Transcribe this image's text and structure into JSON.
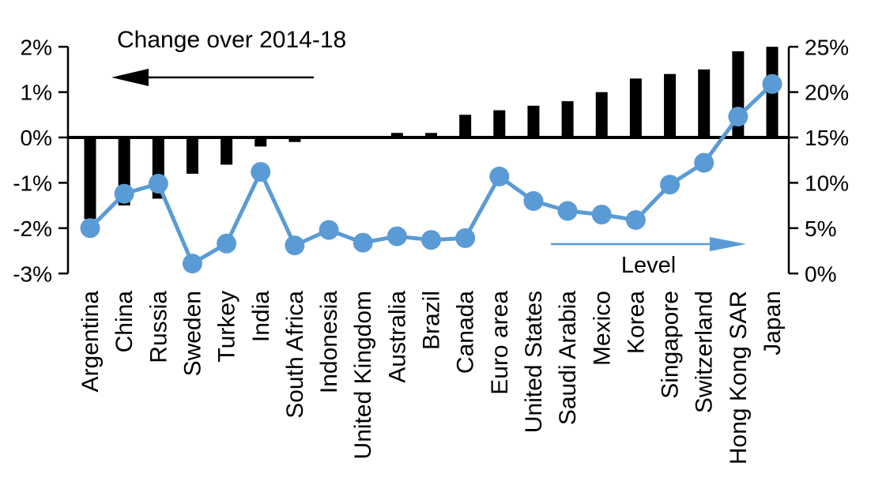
{
  "chart_data": {
    "type": "combo-bar-line",
    "title": "",
    "categories": [
      "Argentina",
      "China",
      "Russia",
      "Sweden",
      "Turkey",
      "India",
      "South Africa",
      "Indonesia",
      "United Kingdom",
      "Australia",
      "Brazil",
      "Canada",
      "Euro area",
      "United States",
      "Saudi Arabia",
      "Mexico",
      "Korea",
      "Singapore",
      "Switzerland",
      "Hong Kong SAR",
      "Japan"
    ],
    "series": [
      {
        "name": "Change over 2014-18",
        "type": "bar",
        "axis": "left",
        "color": "#000000",
        "values": [
          -1.8,
          -1.5,
          -1.35,
          -0.8,
          -0.6,
          -0.2,
          -0.1,
          0.0,
          0.0,
          0.1,
          0.1,
          0.5,
          0.6,
          0.7,
          0.8,
          1.0,
          1.3,
          1.4,
          1.5,
          1.9,
          2.0
        ]
      },
      {
        "name": "Level",
        "type": "line",
        "axis": "right",
        "color": "#5B9BD5",
        "values": [
          5.0,
          8.8,
          9.9,
          1.1,
          3.3,
          11.2,
          3.1,
          4.8,
          3.4,
          4.1,
          3.7,
          3.9,
          10.7,
          8.0,
          6.9,
          6.5,
          5.9,
          9.8,
          12.2,
          17.3,
          20.9
        ]
      }
    ],
    "left_axis": {
      "min": -3,
      "max": 2,
      "unit": "%",
      "ticks": [
        {
          "label": "2%",
          "value": 2
        },
        {
          "label": "1%",
          "value": 1
        },
        {
          "label": "0%",
          "value": 0
        },
        {
          "label": "-1%",
          "value": -1
        },
        {
          "label": "-2%",
          "value": -2
        },
        {
          "label": "-3%",
          "value": -3
        }
      ]
    },
    "right_axis": {
      "min": 0,
      "max": 25,
      "unit": "%",
      "ticks": [
        {
          "label": "25%",
          "value": 25
        },
        {
          "label": "20%",
          "value": 20
        },
        {
          "label": "15%",
          "value": 15
        },
        {
          "label": "10%",
          "value": 10
        },
        {
          "label": "5%",
          "value": 5
        },
        {
          "label": "0%",
          "value": 0
        }
      ]
    },
    "annotations": [
      {
        "text": "Change over 2014-18",
        "arrow_direction": "left",
        "color": "#000000"
      },
      {
        "text": "Level",
        "arrow_direction": "right",
        "color": "#5B9BD5"
      }
    ],
    "layout": {
      "grid": false,
      "background": "#ffffff",
      "zero_baseline_left": 0,
      "zero_baseline_right": 15
    }
  }
}
